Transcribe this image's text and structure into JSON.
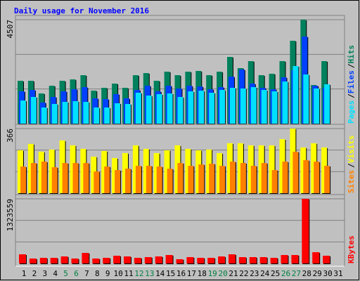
{
  "chart_data": [
    {
      "type": "bar",
      "title": "Daily usage for November 2016",
      "ylim": [
        0,
        4507
      ],
      "yticks": [
        4507
      ],
      "separator": "/",
      "series": [
        {
          "name": "Hits",
          "color": "#00805c",
          "values": [
            1858,
            1858,
            1309,
            1644,
            1858,
            1918,
            2101,
            1431,
            1553,
            1736,
            1553,
            2101,
            2192,
            1858,
            2253,
            2101,
            2253,
            2284,
            2101,
            2253,
            2893,
            2406,
            2710,
            2101,
            2162,
            2710,
            3593,
            4507,
            1675,
            2710,
            null
          ]
        },
        {
          "name": "Files",
          "color": "#0040ff",
          "values": [
            1401,
            1462,
            914,
            1157,
            1401,
            1492,
            1583,
            1096,
            1066,
            1279,
            1096,
            1462,
            1644,
            1401,
            1644,
            1523,
            1644,
            1614,
            1492,
            1583,
            2040,
            2345,
            1736,
            1553,
            1492,
            2010,
            2314,
            3776,
            1644,
            1553,
            null
          ]
        },
        {
          "name": "Pages",
          "color": "#00e0ff",
          "values": [
            1005,
            1157,
            700,
            853,
            944,
            974,
            944,
            700,
            700,
            883,
            853,
            1340,
            1218,
            1279,
            1309,
            1157,
            1401,
            1431,
            1340,
            1462,
            1553,
            1523,
            1583,
            1462,
            1401,
            1827,
            2497,
            2132,
            1523,
            1705,
            null
          ]
        }
      ]
    },
    {
      "type": "bar",
      "ylim": [
        0,
        366
      ],
      "yticks": [
        366
      ],
      "separator": "/",
      "series": [
        {
          "name": "Visits",
          "color": "#ffff00",
          "values": [
            243,
            279,
            235,
            247,
            299,
            271,
            251,
            207,
            239,
            199,
            227,
            271,
            251,
            227,
            243,
            271,
            251,
            243,
            247,
            227,
            283,
            283,
            271,
            271,
            271,
            306,
            366,
            259,
            283,
            259,
            null
          ]
        },
        {
          "name": "Sites",
          "color": "#ff8000",
          "values": [
            151,
            171,
            179,
            147,
            171,
            171,
            171,
            123,
            151,
            131,
            139,
            155,
            155,
            151,
            139,
            171,
            155,
            163,
            167,
            155,
            179,
            171,
            155,
            171,
            131,
            179,
            235,
            187,
            179,
            155,
            null
          ]
        }
      ]
    },
    {
      "type": "bar",
      "ylim": [
        0,
        1323559
      ],
      "yticks": [
        1323559
      ],
      "categories": [
        "1",
        "2",
        "3",
        "4",
        "5",
        "6",
        "7",
        "8",
        "9",
        "10",
        "11",
        "12",
        "13",
        "14",
        "15",
        "16",
        "17",
        "18",
        "19",
        "20",
        "21",
        "22",
        "23",
        "24",
        "25",
        "26",
        "27",
        "28",
        "29",
        "30",
        "31"
      ],
      "category_color": "#000000",
      "weekend_color": "#008040",
      "weekend_categories": [
        "5",
        "6",
        "12",
        "13",
        "19",
        "20",
        "26",
        "27"
      ],
      "series": [
        {
          "name": "KBytes",
          "color": "#ff0000",
          "values": [
            187031,
            100709,
            115096,
            115096,
            143870,
            100709,
            215805,
            100709,
            115096,
            158257,
            143870,
            115096,
            129483,
            143870,
            172644,
            86322,
            129483,
            115096,
            115096,
            143870,
            187031,
            129483,
            129483,
            129483,
            115096,
            172644,
            172644,
            1323559,
            230192,
            158257,
            null
          ]
        }
      ]
    }
  ]
}
